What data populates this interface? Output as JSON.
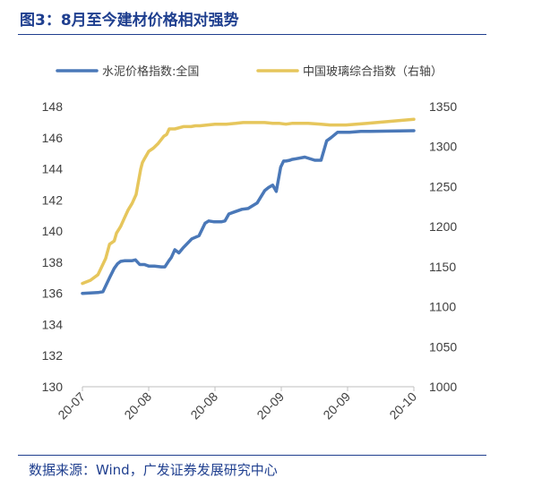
{
  "title": "图3：8月至今建材价格相对强势",
  "source": "数据来源：Wind，广发证券发展研究中心",
  "chart_data": {
    "type": "line",
    "dual_axis": true,
    "y_left": {
      "min": 130,
      "max": 148,
      "step": 2,
      "ticks": [
        "130",
        "132",
        "134",
        "136",
        "138",
        "140",
        "142",
        "144",
        "146",
        "148"
      ]
    },
    "y_right": {
      "min": 1000,
      "max": 1350,
      "step": 50,
      "ticks": [
        "1000",
        "1050",
        "1100",
        "1150",
        "1200",
        "1250",
        "1300",
        "1350"
      ]
    },
    "x_ticks": [
      "20-07",
      "20-08",
      "20-08",
      "20-09",
      "20-09",
      "20-10"
    ],
    "x_range": [
      0,
      100
    ],
    "legend_position": "top",
    "grid": false,
    "series": [
      {
        "name": "水泥价格指数:全国",
        "axis": "left",
        "color": "#4a78b8",
        "x": [
          0,
          4.7,
          6.2,
          8.2,
          9.6,
          10.6,
          11.5,
          12.8,
          14,
          15,
          16,
          17.3,
          18.7,
          20,
          21.7,
          23.8,
          24.9,
          26.1,
          26.8,
          27.9,
          29.1,
          30.3,
          33,
          35.2,
          37,
          38.1,
          39.6,
          40.4,
          42,
          43,
          44.2,
          45.5,
          48.1,
          50,
          52.7,
          55,
          56.2,
          57.4,
          58.5,
          59.8,
          60.7,
          61.4,
          62.6,
          63.2,
          64.5,
          67.1,
          70.1,
          72,
          73.7,
          75,
          77,
          78.3,
          79.5,
          80.6,
          84,
          86.7,
          100
        ],
        "y": [
          136,
          136.05,
          136.1,
          137,
          137.6,
          137.9,
          138.05,
          138.1,
          138.1,
          138.1,
          138.15,
          137.85,
          137.85,
          137.75,
          137.75,
          137.7,
          137.7,
          138.1,
          138.3,
          138.8,
          138.6,
          138.9,
          139.5,
          139.7,
          140.5,
          140.65,
          140.6,
          140.6,
          140.6,
          140.65,
          141.1,
          141.2,
          141.4,
          141.45,
          141.8,
          142.6,
          142.8,
          142.95,
          142.55,
          144.1,
          144.5,
          144.5,
          144.55,
          144.6,
          144.65,
          144.75,
          144.55,
          144.55,
          145.8,
          146.0,
          146.35,
          146.35,
          146.35,
          146.35,
          146.4,
          146.4,
          146.45
        ]
      },
      {
        "name": "中国玻璃综合指数（右轴）",
        "axis": "right",
        "color": "#e6c65c",
        "x": [
          0,
          2.4,
          4.7,
          7,
          8.2,
          9.6,
          10.3,
          11.5,
          12.6,
          13.8,
          15,
          16.2,
          17.6,
          18.1,
          18.9,
          20,
          21.4,
          22.9,
          24.6,
          25.4,
          26.2,
          27.3,
          27.9,
          30.5,
          32.8,
          34.1,
          35.5,
          37.7,
          40,
          43.5,
          46.3,
          48.5,
          52.7,
          55,
          57.4,
          59.5,
          61.4,
          63.2,
          65.6,
          68.1,
          72,
          74.7,
          79.5,
          86,
          100
        ],
        "y": [
          1129,
          1133,
          1140,
          1160,
          1178,
          1182,
          1192,
          1200,
          1210,
          1221,
          1229,
          1240,
          1272,
          1280,
          1286,
          1294,
          1298,
          1304,
          1313,
          1315,
          1322,
          1322,
          1322,
          1325,
          1325,
          1326,
          1326,
          1327,
          1328,
          1328,
          1329,
          1330,
          1330,
          1330,
          1329,
          1329,
          1328,
          1329,
          1329,
          1329,
          1328,
          1327,
          1327,
          1329,
          1334
        ]
      }
    ]
  }
}
